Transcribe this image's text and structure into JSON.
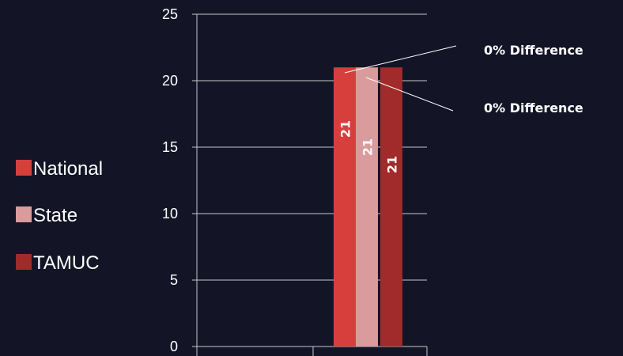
{
  "chart_data": {
    "type": "bar",
    "categories": [
      ""
    ],
    "series": [
      {
        "name": "National",
        "values": [
          21
        ],
        "color": "#d63f3c"
      },
      {
        "name": "State",
        "values": [
          21
        ],
        "color": "#d99b9b"
      },
      {
        "name": "TAMUC",
        "values": [
          21
        ],
        "color": "#a12b2b"
      }
    ],
    "ylim": [
      0,
      25
    ],
    "yticks": [
      0,
      5,
      10,
      15,
      20,
      25
    ],
    "grid": true,
    "legend": "left",
    "data_labels": [
      "21",
      "21",
      "21"
    ],
    "annotations": [
      "0% Difference",
      "0% Difference"
    ]
  },
  "colors": {
    "background": "#141427",
    "grid": "#c8c8c8",
    "text": "#ffffff"
  }
}
